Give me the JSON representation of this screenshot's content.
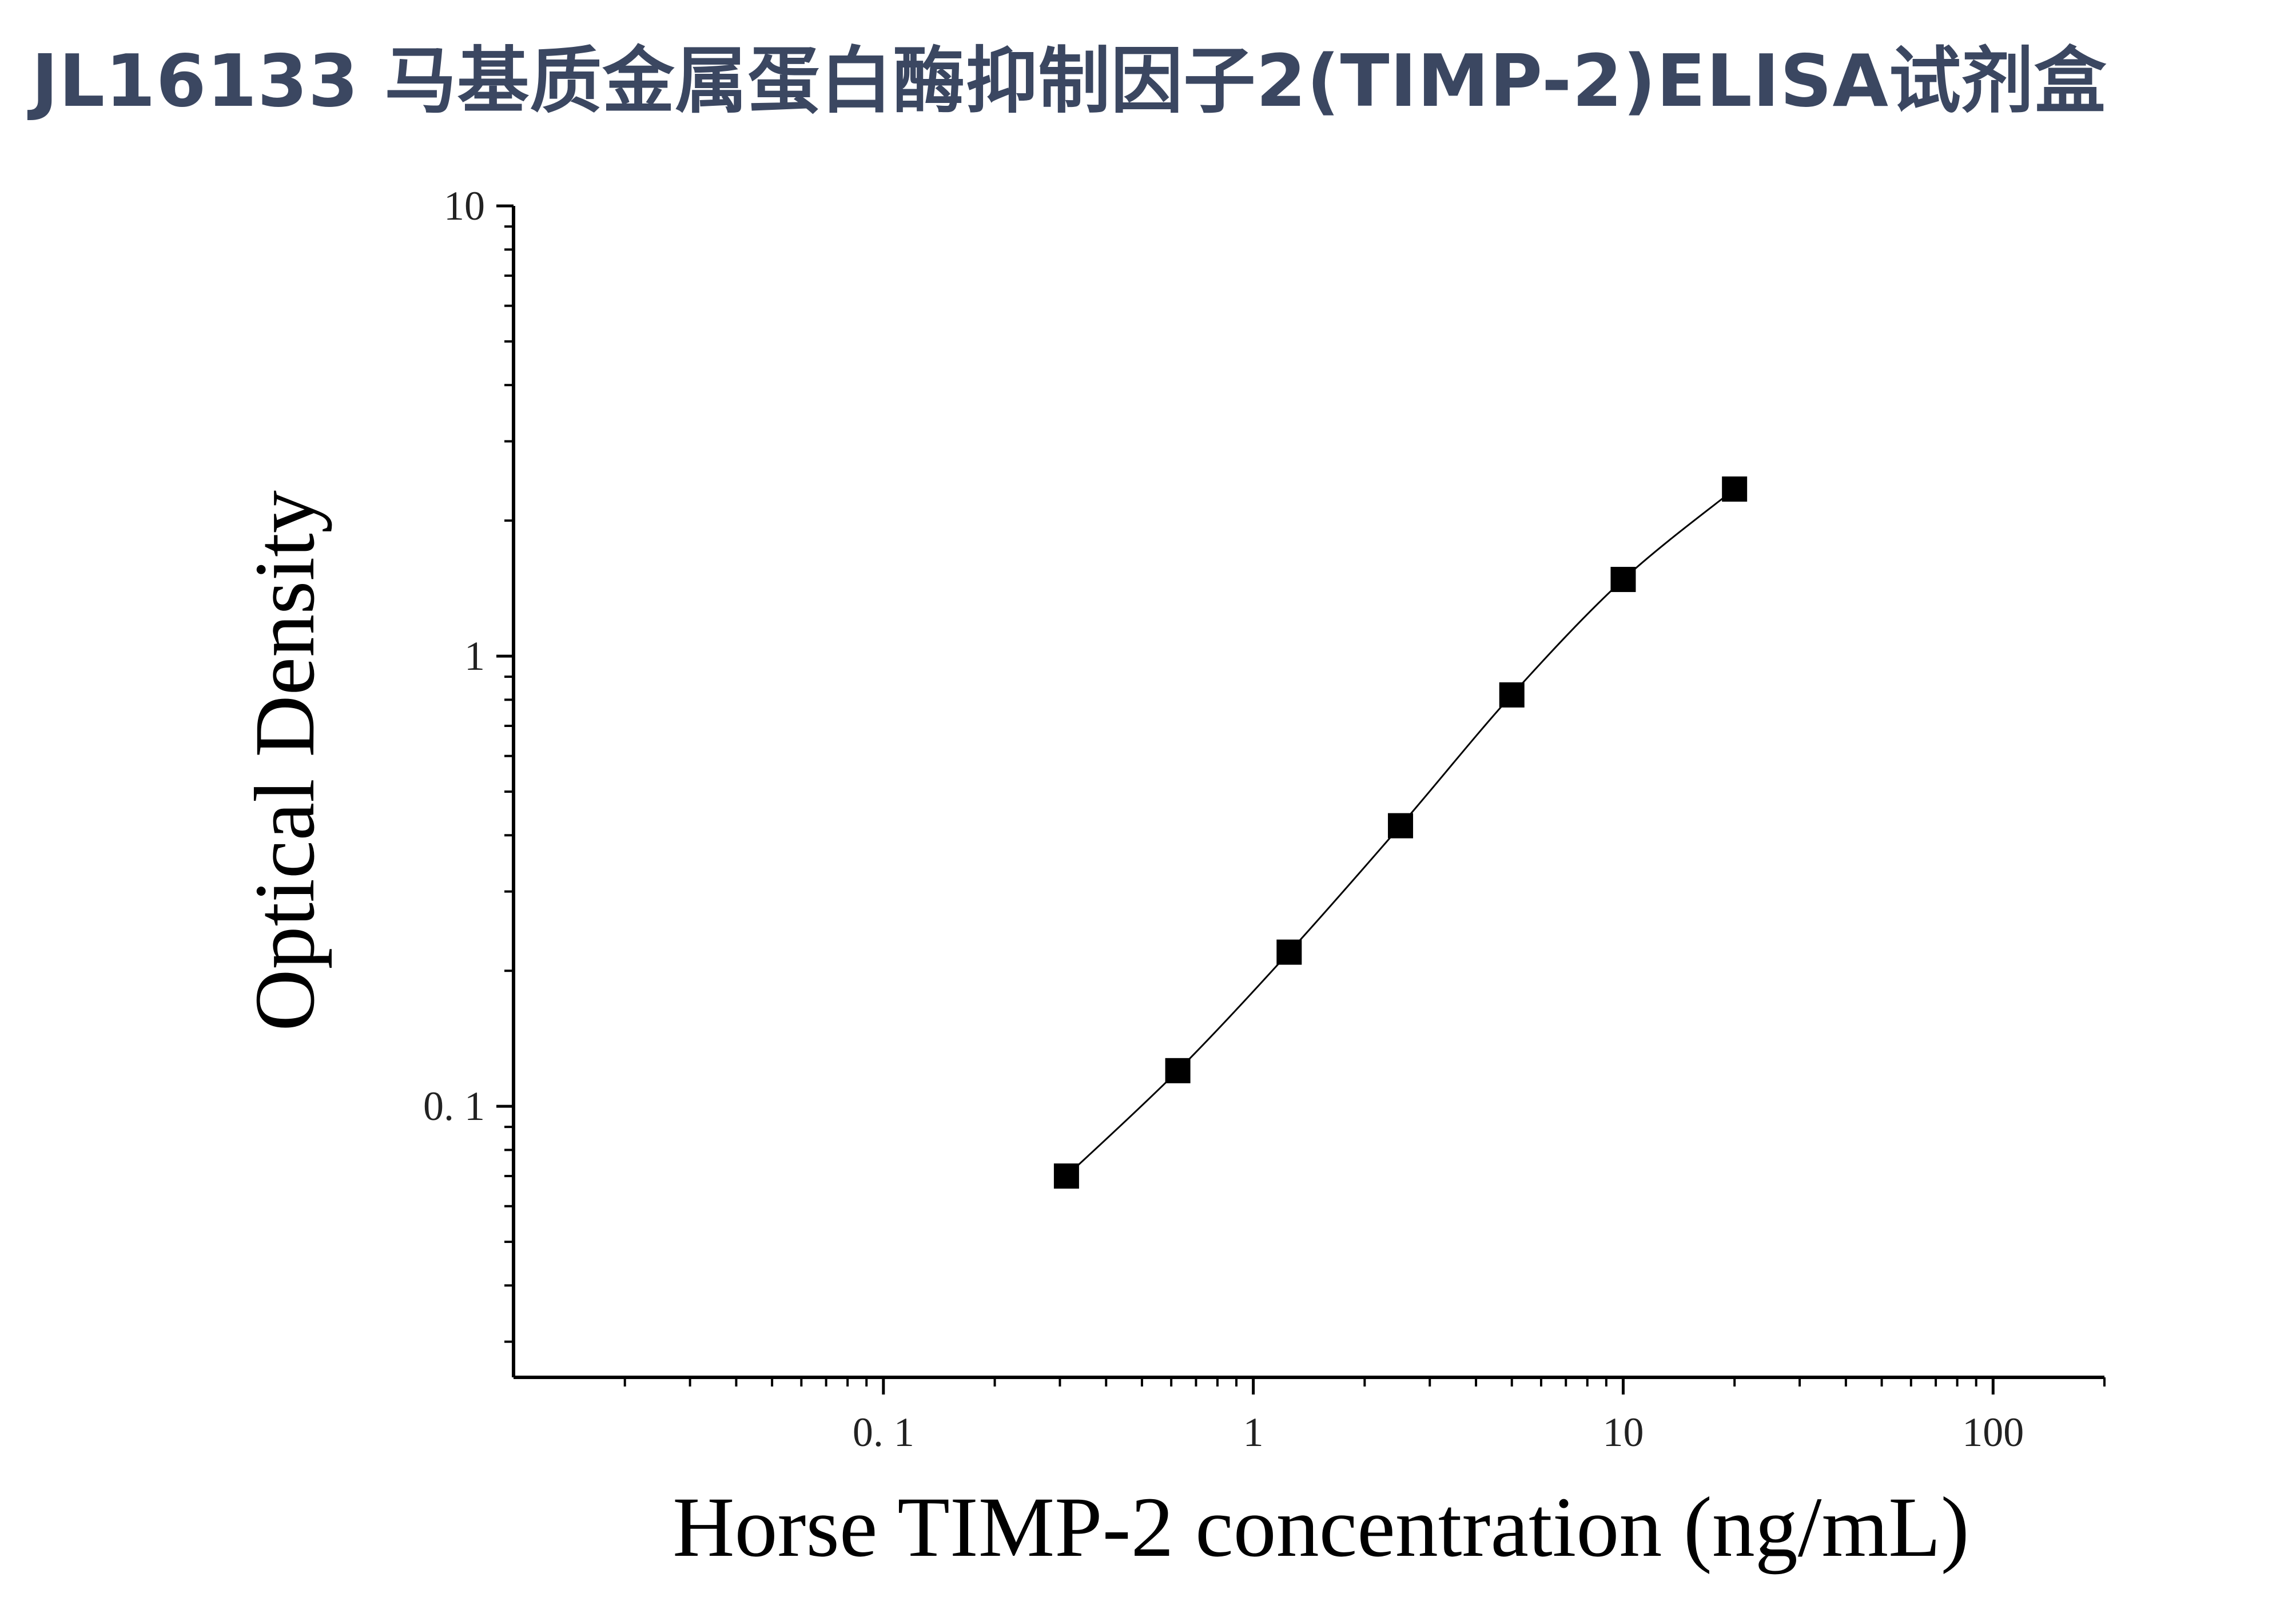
{
  "title": "JL16133 马基质金属蛋白酶抑制因子2(TIMP-2)ELISA试剂盒",
  "chart_data": {
    "type": "scatter",
    "xlabel": "Horse TIMP-2 concentration (ng/mL)",
    "ylabel": "Optical Density",
    "x_scale": "log",
    "y_scale": "log",
    "xlim": [
      0.01,
      200
    ],
    "ylim": [
      0.025,
      10
    ],
    "x_ticks": [
      0.1,
      1,
      10,
      100
    ],
    "x_tick_labels": [
      "0. 1",
      "1",
      "10",
      "100"
    ],
    "y_ticks": [
      0.1,
      1,
      10
    ],
    "y_tick_labels": [
      "0. 1",
      "1",
      "10"
    ],
    "grid": false,
    "marker": "square",
    "fit_line": true,
    "series": [
      {
        "x": [
          0.3125,
          0.625,
          1.25,
          2.5,
          5,
          10,
          20
        ],
        "y": [
          0.07,
          0.12,
          0.22,
          0.42,
          0.82,
          1.48,
          2.35
        ]
      }
    ]
  }
}
